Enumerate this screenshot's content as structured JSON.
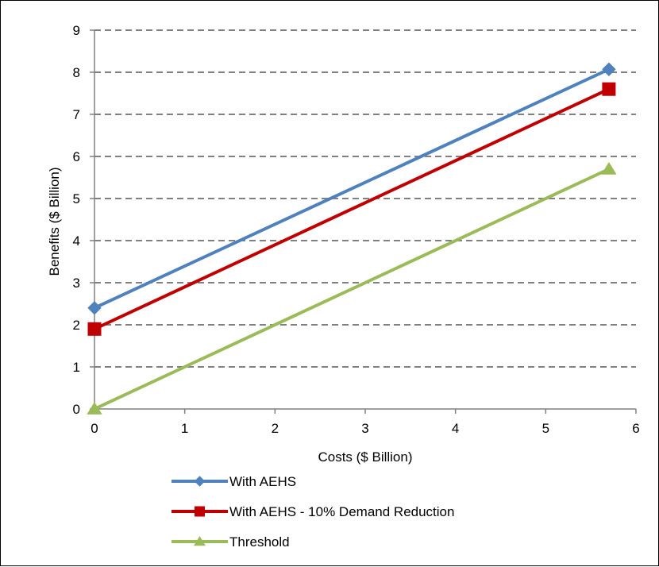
{
  "chart_data": {
    "type": "line",
    "title": "",
    "xlabel": "Costs ($ Billion)",
    "ylabel": "Benefits ($ Billion)",
    "xlim": [
      0,
      6
    ],
    "ylim": [
      0,
      9
    ],
    "xticks": [
      "0",
      "1",
      "2",
      "3",
      "4",
      "5",
      "6"
    ],
    "yticks": [
      "0",
      "1",
      "2",
      "3",
      "4",
      "5",
      "6",
      "7",
      "8",
      "9"
    ],
    "grid": "horizontal-dashed",
    "legend_placement": "bottom",
    "series": [
      {
        "name": "With AEHS",
        "color": "#4F81BD",
        "marker": "diamond",
        "x": [
          0,
          5.7
        ],
        "y": [
          2.4,
          8.07
        ]
      },
      {
        "name": "With AEHS - 10% Demand Reduction",
        "color": "#C00000",
        "marker": "square",
        "x": [
          0,
          5.7
        ],
        "y": [
          1.9,
          7.6
        ]
      },
      {
        "name": "Threshold",
        "color": "#9BBB59",
        "marker": "triangle",
        "x": [
          0,
          5.7
        ],
        "y": [
          0,
          5.7
        ]
      }
    ]
  }
}
